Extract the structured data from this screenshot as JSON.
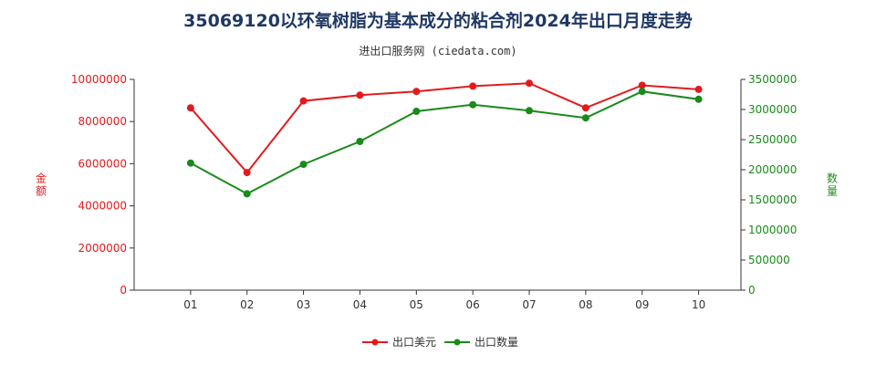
{
  "chart_data": {
    "type": "line",
    "title": "35069120以环氧树脂为基本成分的粘合剂2024年出口月度走势",
    "subtitle": "进出口服务网 (ciedata.com)",
    "categories": [
      "01",
      "02",
      "03",
      "04",
      "05",
      "06",
      "07",
      "08",
      "09",
      "10"
    ],
    "left_axis": {
      "label": "金额",
      "min": 0,
      "max": 10000000,
      "ticks": [
        0,
        2000000,
        4000000,
        6000000,
        8000000,
        10000000
      ],
      "color": "#e31a1c"
    },
    "right_axis": {
      "label": "数量",
      "min": 0,
      "max": 3500000,
      "ticks": [
        0,
        500000,
        1000000,
        1500000,
        2000000,
        2500000,
        3000000,
        3500000
      ],
      "color": "#1a8a1a"
    },
    "series": [
      {
        "name": "出口美元",
        "axis": "left",
        "color": "#e31a1c",
        "values": [
          8650000,
          5580000,
          8980000,
          9250000,
          9430000,
          9680000,
          9820000,
          8650000,
          9720000,
          9530000
        ]
      },
      {
        "name": "出口数量",
        "axis": "right",
        "color": "#1a8a1a",
        "values": [
          2110000,
          1600000,
          2090000,
          2470000,
          2970000,
          3080000,
          2980000,
          2860000,
          3300000,
          3170000
        ]
      }
    ],
    "legend_position": "bottom",
    "grid": false
  }
}
